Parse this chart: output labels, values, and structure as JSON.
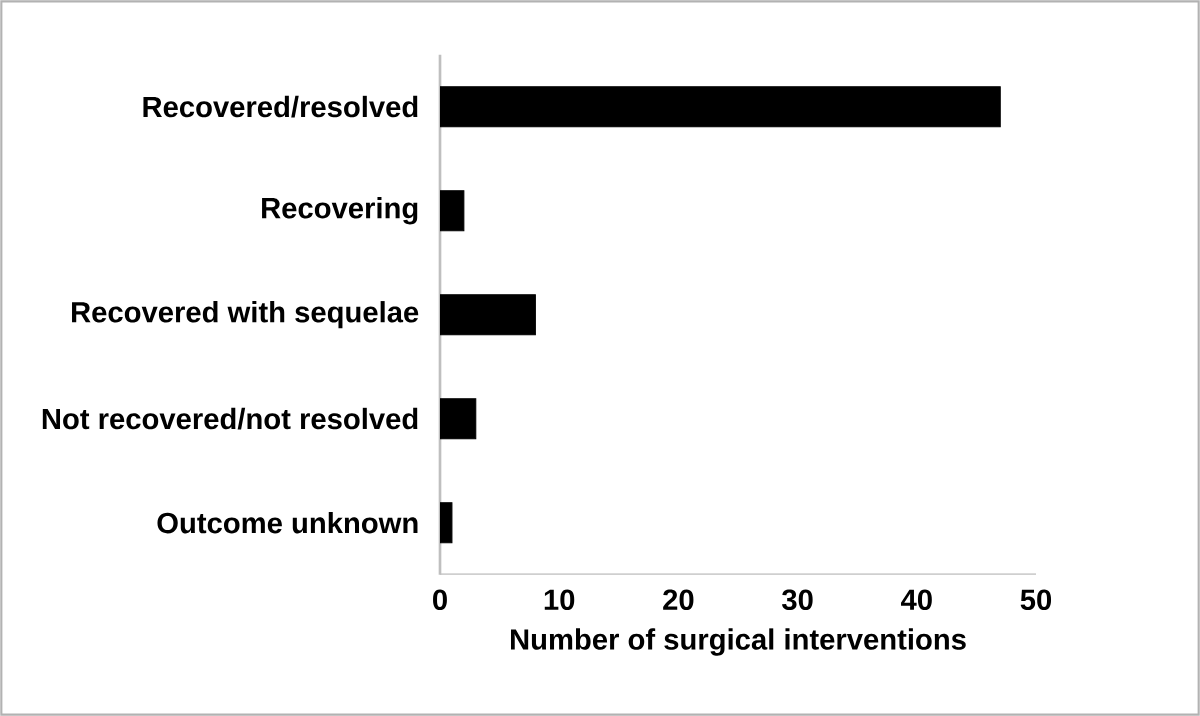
{
  "chart_data": {
    "type": "bar",
    "orientation": "horizontal",
    "xlabel": "Number of surgical interventions",
    "categories": [
      "Recovered/resolved",
      "Recovering",
      "Recovered with sequelae",
      "Not recovered/not resolved",
      "Outcome unknown"
    ],
    "values": [
      47,
      2,
      8,
      3,
      1
    ],
    "color": "#000000",
    "xlim": [
      0,
      50
    ],
    "xticks": [
      0,
      10,
      20,
      30,
      40,
      50
    ],
    "grid": false
  }
}
